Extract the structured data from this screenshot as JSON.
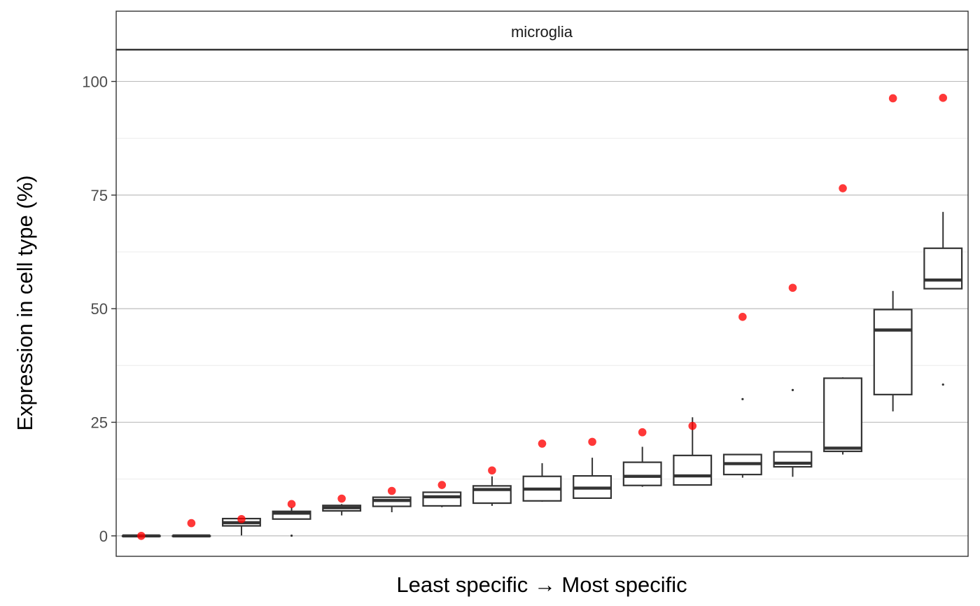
{
  "chart_data": {
    "type": "box",
    "facet": "microglia",
    "xlabel": "Least specific → Most specific",
    "ylabel": "Expression in cell type (%)",
    "ylim": [
      -4.5,
      107
    ],
    "yticks": [
      0,
      25,
      50,
      75,
      100
    ],
    "grid": true,
    "colors": {
      "box": "#333333",
      "point": "#ff0000",
      "grid_major": "#bebebe",
      "grid_minor": "#ebebeb"
    },
    "boxes": [
      {
        "min": 0,
        "q1": 0,
        "median": 0,
        "q3": 0,
        "max": 0,
        "outliers": [],
        "highlight": 0
      },
      {
        "min": 0,
        "q1": 0,
        "median": 0,
        "q3": 0,
        "max": 0,
        "outliers": [],
        "highlight": 2.8
      },
      {
        "min": 0.1,
        "q1": 2.2,
        "median": 2.9,
        "q3": 3.8,
        "max": 3.9,
        "outliers": [],
        "highlight": 3.7
      },
      {
        "min": 3.7,
        "q1": 3.7,
        "median": 5.0,
        "q3": 5.4,
        "max": 6.3,
        "outliers": [
          0.05
        ],
        "highlight": 7.0
      },
      {
        "min": 4.5,
        "q1": 5.5,
        "median": 6.2,
        "q3": 6.7,
        "max": 7.0,
        "outliers": [],
        "highlight": 8.2
      },
      {
        "min": 5.2,
        "q1": 6.5,
        "median": 7.8,
        "q3": 8.5,
        "max": 8.6,
        "outliers": [],
        "highlight": 9.9
      },
      {
        "min": 6.3,
        "q1": 6.6,
        "median": 8.6,
        "q3": 9.6,
        "max": 9.7,
        "outliers": [],
        "highlight": 11.2
      },
      {
        "min": 6.6,
        "q1": 7.2,
        "median": 10.2,
        "q3": 11.0,
        "max": 13.1,
        "outliers": [],
        "highlight": 14.4
      },
      {
        "min": 7.5,
        "q1": 7.7,
        "median": 10.3,
        "q3": 13.1,
        "max": 16.0,
        "outliers": [],
        "highlight": 20.3
      },
      {
        "min": 8.3,
        "q1": 8.3,
        "median": 10.5,
        "q3": 13.2,
        "max": 17.2,
        "outliers": [],
        "highlight": 20.7
      },
      {
        "min": 10.8,
        "q1": 11.1,
        "median": 13.1,
        "q3": 16.2,
        "max": 19.6,
        "outliers": [],
        "highlight": 22.8
      },
      {
        "min": 11.2,
        "q1": 11.2,
        "median": 13.2,
        "q3": 17.7,
        "max": 26.1,
        "outliers": [],
        "highlight": 24.2
      },
      {
        "min": 12.8,
        "q1": 13.5,
        "median": 15.9,
        "q3": 17.9,
        "max": 17.9,
        "outliers": [
          30.1
        ],
        "highlight": 48.2
      },
      {
        "min": 13.0,
        "q1": 15.2,
        "median": 16.0,
        "q3": 18.5,
        "max": 18.5,
        "outliers": [
          32.1
        ],
        "highlight": 54.6
      },
      {
        "min": 17.9,
        "q1": 18.6,
        "median": 19.3,
        "q3": 34.7,
        "max": 34.9,
        "outliers": [],
        "highlight": 76.5
      },
      {
        "min": 27.4,
        "q1": 31.1,
        "median": 45.3,
        "q3": 49.8,
        "max": 53.9,
        "outliers": [],
        "highlight": 96.3
      },
      {
        "min": 54.4,
        "q1": 54.4,
        "median": 56.3,
        "q3": 63.3,
        "max": 71.3,
        "outliers": [
          33.3
        ],
        "highlight": 96.4
      }
    ]
  }
}
